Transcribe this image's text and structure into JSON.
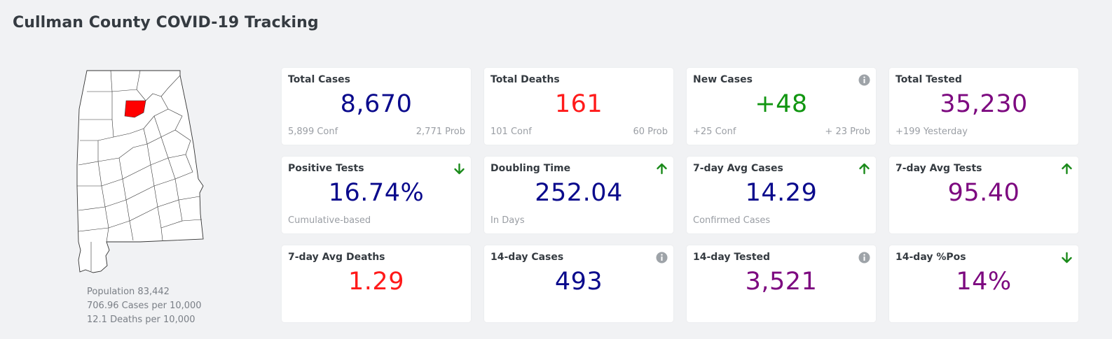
{
  "page": {
    "title": "Cullman County COVID-19 Tracking"
  },
  "map": {
    "highlight_color": "#ff0000"
  },
  "county_stats": {
    "population": "Population 83,442",
    "cases_per_10k": "706.96 Cases per 10,000",
    "deaths_per_10k": "12.1 Deaths per 10,000"
  },
  "colors": {
    "navy": "#0a0a8c",
    "red": "#ff1a1a",
    "green": "#119611",
    "purple": "#7d0a80"
  },
  "cards": [
    {
      "title": "Total Cases",
      "value": "8,670",
      "value_color": "#0a0a8c",
      "sub_left": "5,899 Conf",
      "sub_right": "2,771 Prob",
      "icon": ""
    },
    {
      "title": "Total Deaths",
      "value": "161",
      "value_color": "#ff1a1a",
      "sub_left": "101 Conf",
      "sub_right": "60 Prob",
      "icon": ""
    },
    {
      "title": "New Cases",
      "value": "+48",
      "value_color": "#119611",
      "sub_left": "+25 Conf",
      "sub_right": "+ 23 Prob",
      "icon": "info-icon"
    },
    {
      "title": "Total Tested",
      "value": "35,230",
      "value_color": "#7d0a80",
      "sub_left": "+199 Yesterday",
      "sub_right": "",
      "icon": ""
    },
    {
      "title": "Positive Tests",
      "value": "16.74%",
      "value_color": "#0a0a8c",
      "sub_left": "Cumulative-based",
      "sub_right": "",
      "icon": "arrow-down-icon"
    },
    {
      "title": "Doubling Time",
      "value": "252.04",
      "value_color": "#0a0a8c",
      "sub_left": "In Days",
      "sub_right": "",
      "icon": "arrow-up-icon"
    },
    {
      "title": "7-day Avg Cases",
      "value": "14.29",
      "value_color": "#0a0a8c",
      "sub_left": "Confirmed Cases",
      "sub_right": "",
      "icon": "arrow-up-icon"
    },
    {
      "title": "7-day Avg Tests",
      "value": "95.40",
      "value_color": "#7d0a80",
      "sub_left": "",
      "sub_right": "",
      "icon": "arrow-up-icon"
    },
    {
      "title": "7-day Avg Deaths",
      "value": "1.29",
      "value_color": "#ff1a1a",
      "sub_left": "",
      "sub_right": "",
      "icon": ""
    },
    {
      "title": "14-day Cases",
      "value": "493",
      "value_color": "#0a0a8c",
      "sub_left": "",
      "sub_right": "",
      "icon": "info-icon"
    },
    {
      "title": "14-day Tested",
      "value": "3,521",
      "value_color": "#7d0a80",
      "sub_left": "",
      "sub_right": "",
      "icon": "info-icon"
    },
    {
      "title": "14-day %Pos",
      "value": "14%",
      "value_color": "#7d0a80",
      "sub_left": "",
      "sub_right": "",
      "icon": "arrow-down-icon"
    }
  ]
}
